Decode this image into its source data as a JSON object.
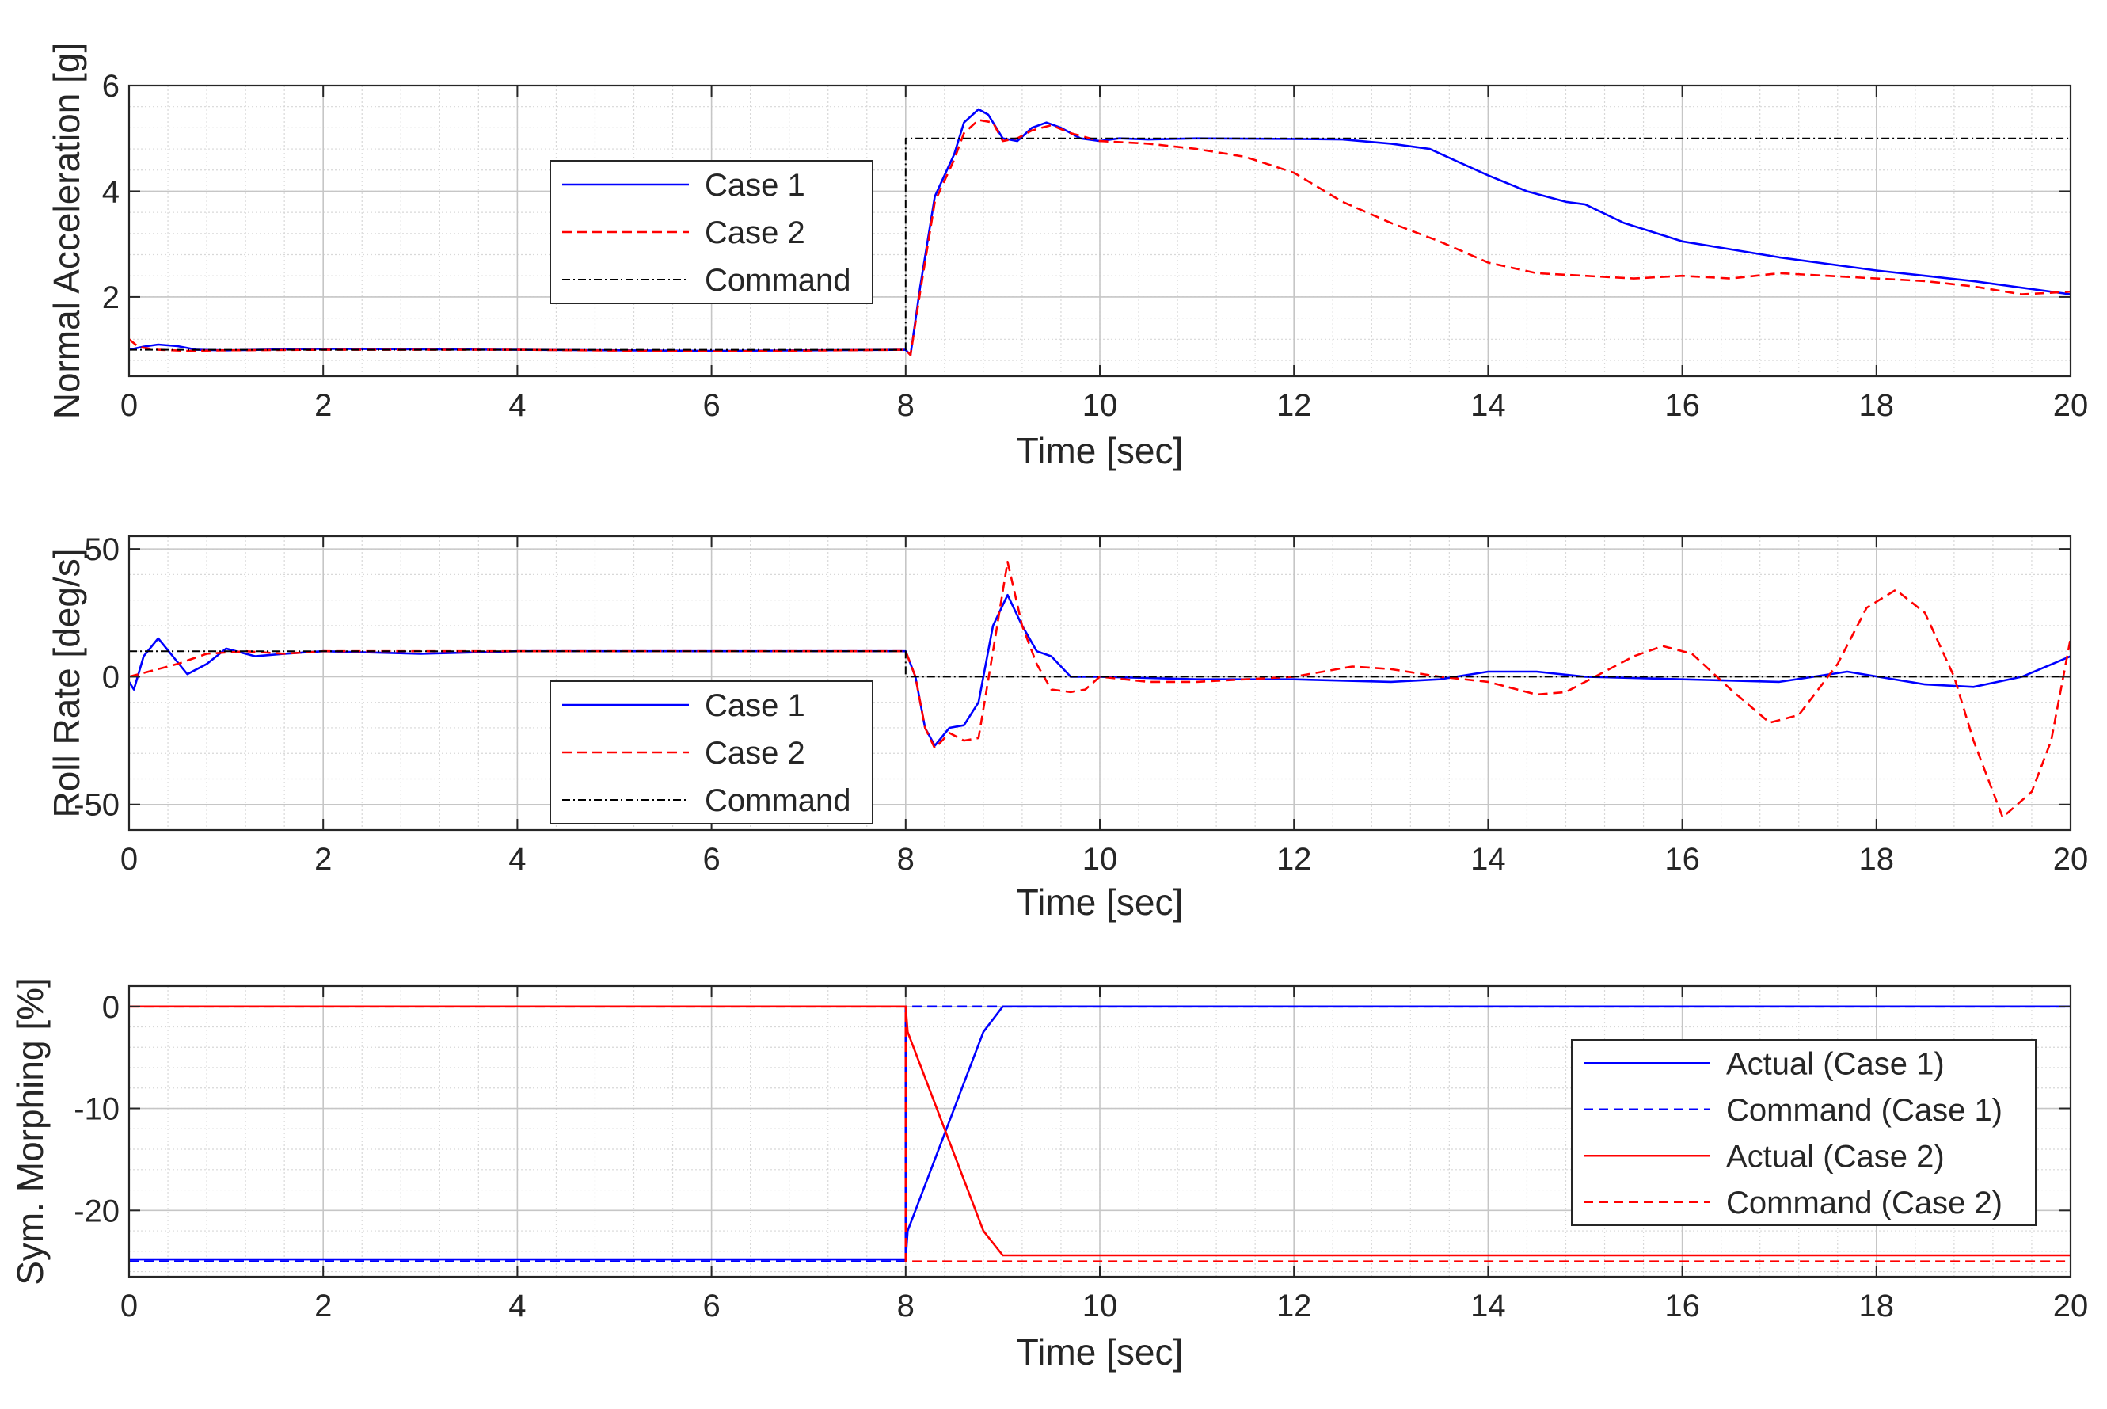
{
  "chart_data": [
    {
      "type": "line",
      "xlabel": "Time [sec]",
      "ylabel": "Normal Acceleration [g]",
      "xlim": [
        0,
        20
      ],
      "ylim": [
        0.5,
        6
      ],
      "xticks": [
        0,
        2,
        4,
        6,
        8,
        10,
        12,
        14,
        16,
        18,
        20
      ],
      "yticks": [
        2,
        4,
        6
      ],
      "grid": "on (major + minor)",
      "legend_location": "upper-left-center",
      "series": [
        {
          "name": "Case 1",
          "color": "#0000ff",
          "style": "solid",
          "x": [
            0,
            0.15,
            0.3,
            0.5,
            0.7,
            1,
            2,
            4,
            6,
            8,
            8.05,
            8.15,
            8.3,
            8.5,
            8.6,
            8.75,
            8.85,
            9.0,
            9.15,
            9.3,
            9.45,
            9.6,
            9.8,
            10.0,
            10.2,
            10.5,
            11,
            12,
            12.5,
            13.0,
            13.4,
            13.7,
            14.0,
            14.4,
            14.8,
            15.0,
            15.4,
            16,
            17,
            18,
            19,
            20
          ],
          "y": [
            1.0,
            1.06,
            1.1,
            1.07,
            1.0,
            0.99,
            1.02,
            1.0,
            0.98,
            1.0,
            0.9,
            2.2,
            3.9,
            4.7,
            5.3,
            5.55,
            5.45,
            5.0,
            4.95,
            5.2,
            5.3,
            5.2,
            5.0,
            4.95,
            5.0,
            4.98,
            5.0,
            4.99,
            4.98,
            4.9,
            4.8,
            4.55,
            4.3,
            4.0,
            3.8,
            3.75,
            3.4,
            3.05,
            2.75,
            2.5,
            2.3,
            2.05
          ]
        },
        {
          "name": "Case 2",
          "color": "#ff0000",
          "style": "dashed",
          "x": [
            0,
            0.1,
            0.3,
            0.6,
            1,
            2,
            4,
            6,
            8,
            8.05,
            8.15,
            8.3,
            8.5,
            8.6,
            8.75,
            8.9,
            9.0,
            9.15,
            9.3,
            9.5,
            9.7,
            10.0,
            10.5,
            11.0,
            11.5,
            12.0,
            12.5,
            13.0,
            13.5,
            14.0,
            14.5,
            15.0,
            15.5,
            16.0,
            16.5,
            17.0,
            17.5,
            18.0,
            18.5,
            19.0,
            19.5,
            20.0
          ],
          "y": [
            1.2,
            1.05,
            1.0,
            0.98,
            0.99,
            1.0,
            1.0,
            0.97,
            1.0,
            0.9,
            2.1,
            3.8,
            4.6,
            5.1,
            5.35,
            5.3,
            4.95,
            5.0,
            5.15,
            5.25,
            5.1,
            4.95,
            4.9,
            4.8,
            4.65,
            4.35,
            3.8,
            3.4,
            3.05,
            2.65,
            2.45,
            2.4,
            2.35,
            2.4,
            2.35,
            2.45,
            2.4,
            2.35,
            2.3,
            2.2,
            2.05,
            2.1
          ]
        },
        {
          "name": "Command",
          "color": "#000000",
          "style": "dashdot",
          "x": [
            0,
            8,
            8,
            20
          ],
          "y": [
            1,
            1,
            5,
            5
          ]
        }
      ]
    },
    {
      "type": "line",
      "xlabel": "Time [sec]",
      "ylabel": "Roll Rate [deg/s]",
      "xlim": [
        0,
        20
      ],
      "ylim": [
        -60,
        55
      ],
      "xticks": [
        0,
        2,
        4,
        6,
        8,
        10,
        12,
        14,
        16,
        18,
        20
      ],
      "yticks": [
        -50,
        0,
        50
      ],
      "grid": "on (major + minor)",
      "legend_location": "lower-left-center",
      "series": [
        {
          "name": "Case 1",
          "color": "#0000ff",
          "style": "solid",
          "x": [
            0,
            0.05,
            0.15,
            0.3,
            0.45,
            0.6,
            0.8,
            1.0,
            1.3,
            1.6,
            2,
            3,
            4,
            5,
            6,
            7,
            8,
            8.1,
            8.2,
            8.3,
            8.45,
            8.6,
            8.75,
            8.9,
            9.05,
            9.2,
            9.35,
            9.5,
            9.7,
            10,
            11,
            12,
            13,
            13.5,
            14,
            14.5,
            15,
            16,
            17,
            17.7,
            18.5,
            19.0,
            19.5,
            20.0
          ],
          "y": [
            -2,
            -5,
            8,
            15,
            8,
            1,
            5,
            11,
            8,
            9,
            10,
            9,
            10,
            10,
            10,
            10,
            10,
            0,
            -20,
            -27,
            -20,
            -19,
            -10,
            20,
            32,
            20,
            10,
            8,
            0,
            0,
            -1,
            -1,
            -2,
            -1,
            2,
            2,
            0,
            -1,
            -2,
            2,
            -3,
            -4,
            0,
            8
          ]
        },
        {
          "name": "Case 2",
          "color": "#ff0000",
          "style": "dashed",
          "x": [
            0,
            0.2,
            0.5,
            0.8,
            1.2,
            1.6,
            2,
            4,
            6,
            8,
            8.1,
            8.2,
            8.3,
            8.45,
            8.6,
            8.75,
            8.9,
            9.05,
            9.2,
            9.35,
            9.5,
            9.7,
            9.85,
            10.0,
            10.5,
            11.0,
            11.5,
            12.0,
            12.3,
            12.6,
            13.0,
            13.5,
            14.0,
            14.5,
            14.8,
            15.1,
            15.5,
            15.8,
            16.1,
            16.5,
            16.9,
            17.2,
            17.6,
            17.9,
            18.2,
            18.5,
            18.8,
            19.0,
            19.3,
            19.6,
            19.8,
            20.0
          ],
          "y": [
            0,
            2,
            5,
            9,
            10,
            9,
            10,
            10,
            10,
            10,
            0,
            -20,
            -28,
            -22,
            -25,
            -24,
            10,
            45,
            20,
            5,
            -5,
            -6,
            -5,
            0,
            -2,
            -2,
            -1,
            0,
            2,
            4,
            3,
            0,
            -2,
            -7,
            -6,
            0,
            8,
            12,
            9,
            -5,
            -18,
            -15,
            5,
            27,
            34,
            25,
            0,
            -25,
            -55,
            -45,
            -25,
            15
          ]
        },
        {
          "name": "Command",
          "color": "#000000",
          "style": "dashdot",
          "x": [
            0,
            8,
            8,
            20
          ],
          "y": [
            10,
            10,
            0,
            0
          ]
        }
      ]
    },
    {
      "type": "line",
      "xlabel": "Time [sec]",
      "ylabel": "Sym. Morphing [%]",
      "xlim": [
        0,
        20
      ],
      "ylim": [
        -26.5,
        2
      ],
      "xticks": [
        0,
        2,
        4,
        6,
        8,
        10,
        12,
        14,
        16,
        18,
        20
      ],
      "yticks": [
        -20,
        -10,
        0
      ],
      "grid": "on (major + minor)",
      "legend_location": "right",
      "series": [
        {
          "name": "Actual (Case 1)",
          "color": "#0000ff",
          "style": "solid",
          "x": [
            0,
            8,
            8.02,
            8.8,
            9.0,
            20
          ],
          "y": [
            -24.8,
            -24.8,
            -22.0,
            -2.5,
            0,
            0
          ]
        },
        {
          "name": "Command (Case 1)",
          "color": "#0000ff",
          "style": "dashed",
          "x": [
            0,
            8,
            8,
            20
          ],
          "y": [
            -25,
            -25,
            0,
            0
          ]
        },
        {
          "name": "Actual (Case 2)",
          "color": "#ff0000",
          "style": "solid",
          "x": [
            0,
            8,
            8.02,
            8.8,
            9.0,
            20
          ],
          "y": [
            0,
            0,
            -2.5,
            -22.0,
            -24.4,
            -24.4
          ]
        },
        {
          "name": "Command (Case 2)",
          "color": "#ff0000",
          "style": "dashed",
          "x": [
            0,
            8,
            8,
            20
          ],
          "y": [
            0,
            0,
            -25,
            -25
          ]
        }
      ]
    }
  ]
}
